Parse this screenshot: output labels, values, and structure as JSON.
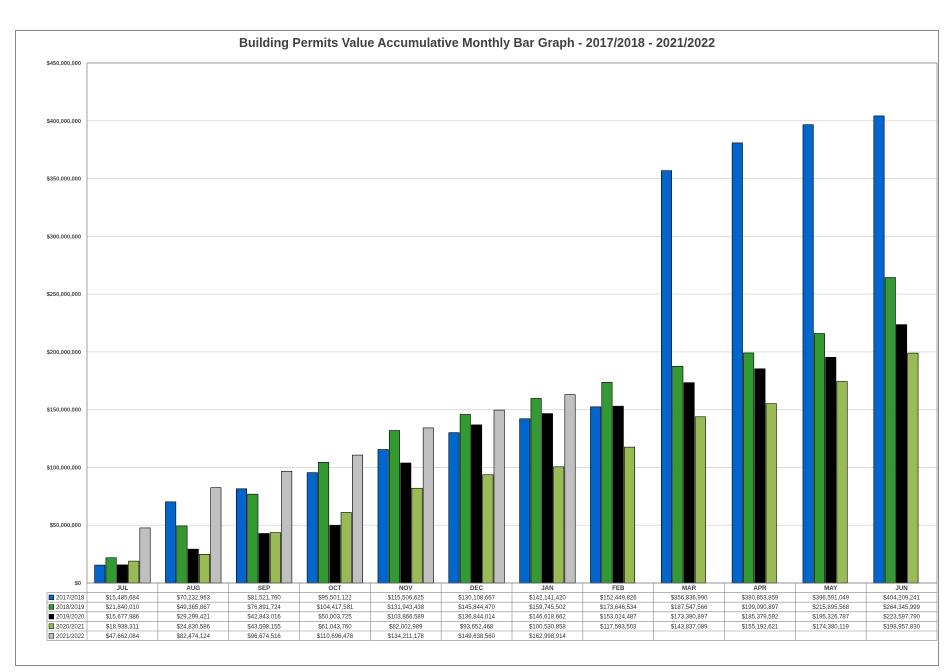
{
  "chart_data": {
    "type": "bar",
    "title": "Building Permits Value Accumulative Monthly Bar Graph - 2017/2018 - 2021/2022",
    "xlabel": "",
    "ylabel": "",
    "ylim": [
      0,
      450000000
    ],
    "y_ticks": [
      "$0",
      "$50,000,000",
      "$100,000,000",
      "$150,000,000",
      "$200,000,000",
      "$250,000,000",
      "$300,000,000",
      "$350,000,000",
      "$400,000,000",
      "$450,000,000"
    ],
    "grid": true,
    "legend_placement": "data-table-below",
    "categories": [
      "JUL",
      "AUG",
      "SEP",
      "OCT",
      "NOV",
      "DEC",
      "JAN",
      "FEB",
      "MAR",
      "APR",
      "MAY",
      "JUN"
    ],
    "series": [
      {
        "name": "2017/2018",
        "color": "#0066cc",
        "values": [
          15485684,
          70232963,
          81521760,
          95501122,
          115506625,
          130108667,
          142141420,
          152449826,
          356836990,
          380853859,
          396591049,
          404209241
        ],
        "labels": [
          "$15,485,684",
          "$70,232,963",
          "$81,521,760",
          "$95,501,122",
          "$115,506,625",
          "$130,108,667",
          "$142,141,420",
          "$152,449,826",
          "$356,836,990",
          "$380,853,859",
          "$396,591,049",
          "$404,209,241"
        ]
      },
      {
        "name": "2018/2019",
        "color": "#339933",
        "values": [
          21840010,
          49365867,
          76891724,
          104417581,
          131943438,
          145844470,
          159745502,
          173646534,
          187547566,
          199090897,
          215895568,
          264345999
        ],
        "labels": [
          "$21,840,010",
          "$49,365,867",
          "$76,891,724",
          "$104,417,581",
          "$131,943,438",
          "$145,844,470",
          "$159,745,502",
          "$173,646,534",
          "$187,547,566",
          "$199,090,897",
          "$215,895,568",
          "$264,345,999"
        ]
      },
      {
        "name": "2019/2020",
        "color": "#000000",
        "values": [
          15677986,
          29299421,
          42843016,
          50003725,
          103866589,
          136844014,
          146618662,
          153024487,
          173380897,
          185379592,
          195326787,
          223597790
        ],
        "labels": [
          "$15,677,986",
          "$29,299,421",
          "$42,843,016",
          "$50,003,725",
          "$103,866,589",
          "$136,844,014",
          "$146,618,662",
          "$153,024,487",
          "$173,380,897",
          "$185,379,592",
          "$195,326,787",
          "$223,597,790"
        ]
      },
      {
        "name": "2020/2021",
        "color": "#99bb55",
        "values": [
          18938311,
          24830586,
          43598155,
          61043760,
          82002989,
          93652468,
          100530858,
          117593503,
          143837089,
          155192621,
          174380119,
          198957830
        ],
        "labels": [
          "$18,938,311",
          "$24,830,586",
          "$43,598,155",
          "$61,043,760",
          "$82,002,989",
          "$93,652,468",
          "$100,530,858",
          "$117,593,503",
          "$143,837,089",
          "$155,192,621",
          "$174,380,119",
          "$198,957,830"
        ]
      },
      {
        "name": "2021/2022",
        "color": "#c0c0c0",
        "values": [
          47662084,
          82474124,
          96674516,
          110696478,
          134211178,
          149638560,
          162998914,
          null,
          null,
          null,
          null,
          null
        ],
        "labels": [
          "$47,662,084",
          "$82,474,124",
          "$96,674,516",
          "$110,696,478",
          "$134,211,178",
          "$149,638,560",
          "$162,998,914",
          "",
          "",
          "",
          "",
          ""
        ]
      }
    ]
  }
}
